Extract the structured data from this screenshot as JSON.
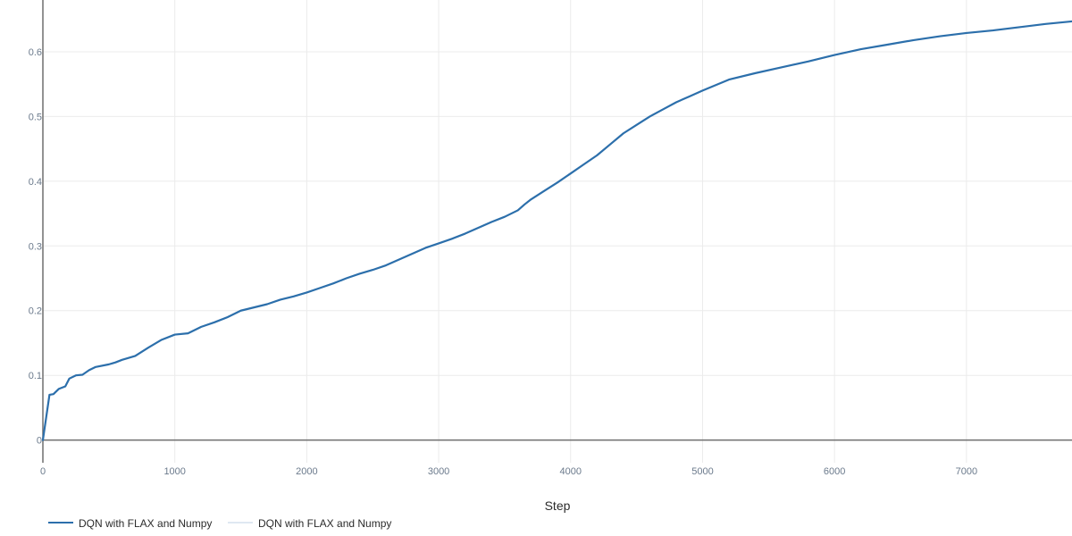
{
  "chart_data": {
    "type": "line",
    "xlabel": "Step",
    "ylabel": "",
    "xlim": [
      0,
      7800
    ],
    "ylim": [
      -0.035,
      0.68
    ],
    "grid": true,
    "x_ticks": [
      {
        "value": 0,
        "label": "0"
      },
      {
        "value": 1000,
        "label": "1000"
      },
      {
        "value": 2000,
        "label": "2000"
      },
      {
        "value": 3000,
        "label": "3000"
      },
      {
        "value": 4000,
        "label": "4000"
      },
      {
        "value": 5000,
        "label": "5000"
      },
      {
        "value": 6000,
        "label": "6000"
      },
      {
        "value": 7000,
        "label": "7000"
      }
    ],
    "y_ticks": [
      {
        "value": 0,
        "label": "0"
      },
      {
        "value": 0.1,
        "label": "0.1"
      },
      {
        "value": 0.2,
        "label": "0.2"
      },
      {
        "value": 0.3,
        "label": "0.3"
      },
      {
        "value": 0.4,
        "label": "0.4"
      },
      {
        "value": 0.5,
        "label": "0.5"
      },
      {
        "value": 0.6,
        "label": "0.6"
      }
    ],
    "legend_position": "bottom-left",
    "series": [
      {
        "name": "DQN with FLAX and Numpy",
        "color": "#2c6fab",
        "x": [
          0,
          50,
          80,
          120,
          170,
          200,
          250,
          300,
          350,
          400,
          500,
          550,
          600,
          700,
          800,
          900,
          1000,
          1100,
          1200,
          1300,
          1400,
          1500,
          1600,
          1700,
          1800,
          1900,
          2000,
          2100,
          2200,
          2300,
          2400,
          2500,
          2600,
          2700,
          2800,
          2900,
          3000,
          3100,
          3200,
          3300,
          3400,
          3500,
          3600,
          3650,
          3700,
          3800,
          3900,
          4000,
          4100,
          4200,
          4300,
          4400,
          4500,
          4600,
          4700,
          4800,
          4900,
          5000,
          5200,
          5400,
          5600,
          5800,
          6000,
          6200,
          6400,
          6600,
          6800,
          7000,
          7200,
          7400,
          7600,
          7800
        ],
        "values": [
          0.0,
          0.07,
          0.071,
          0.079,
          0.083,
          0.095,
          0.1,
          0.101,
          0.108,
          0.113,
          0.117,
          0.12,
          0.124,
          0.13,
          0.143,
          0.155,
          0.163,
          0.165,
          0.175,
          0.182,
          0.19,
          0.2,
          0.205,
          0.21,
          0.217,
          0.222,
          0.228,
          0.235,
          0.242,
          0.25,
          0.257,
          0.263,
          0.27,
          0.279,
          0.288,
          0.297,
          0.304,
          0.311,
          0.319,
          0.328,
          0.337,
          0.345,
          0.355,
          0.364,
          0.372,
          0.385,
          0.398,
          0.412,
          0.426,
          0.44,
          0.457,
          0.474,
          0.487,
          0.5,
          0.511,
          0.522,
          0.531,
          0.54,
          0.557,
          0.567,
          0.576,
          0.585,
          0.595,
          0.604,
          0.611,
          0.618,
          0.624,
          0.629,
          0.633,
          0.638,
          0.643,
          0.647
        ]
      },
      {
        "name": "DQN with FLAX and Numpy",
        "color": "#dfe8f2",
        "x": [],
        "values": []
      }
    ]
  }
}
